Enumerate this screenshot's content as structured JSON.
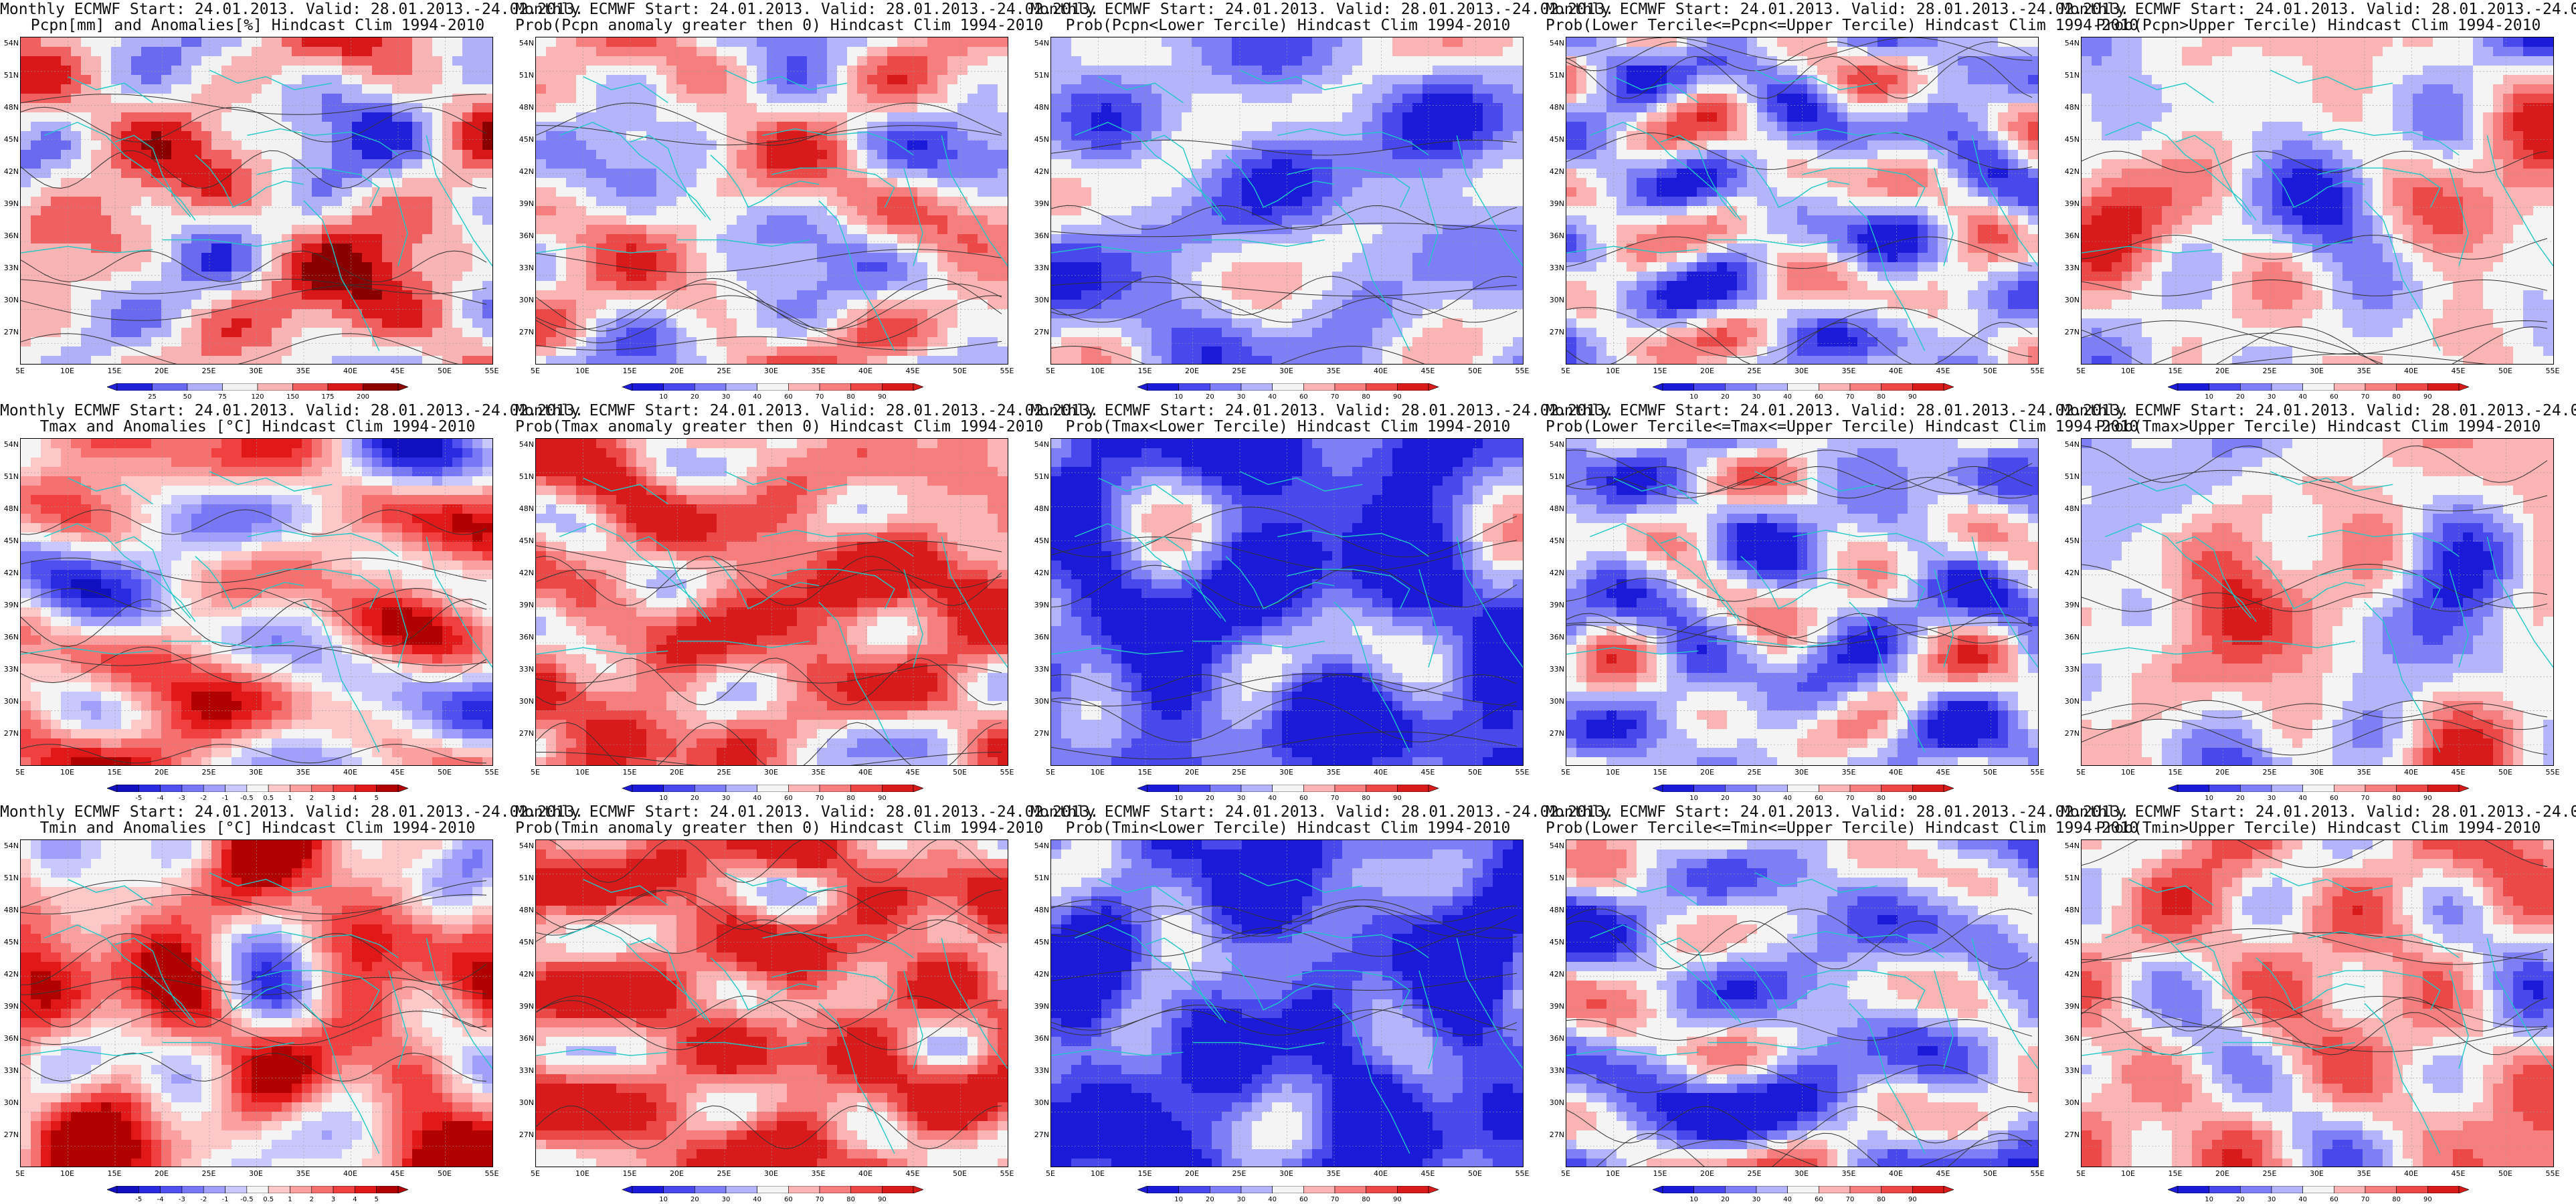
{
  "header": "Monthly ECMWF Start: 24.01.2013. Valid: 28.01.2013.-24.02.2013.",
  "lat_labels": [
    "54N",
    "51N",
    "48N",
    "45N",
    "42N",
    "39N",
    "36N",
    "33N",
    "30N",
    "27N"
  ],
  "lon_labels": [
    "5E",
    "10E",
    "15E",
    "20E",
    "25E",
    "30E",
    "35E",
    "40E",
    "45E",
    "50E",
    "55E"
  ],
  "colorbars": {
    "precip_anom": {
      "labels": [
        "25",
        "50",
        "75",
        "120",
        "150",
        "175",
        "200"
      ],
      "colors": [
        "#2020d8",
        "#6a6af0",
        "#b0b0f8",
        "#f2f2f2",
        "#f8b4b4",
        "#f06060",
        "#d81818",
        "#8a0000"
      ]
    },
    "temp_anom": {
      "labels": [
        "-5",
        "-4",
        "-3",
        "-2",
        "-1",
        "-0.5",
        "0.5",
        "1",
        "2",
        "3",
        "4",
        "5"
      ],
      "colors": [
        "#1010c0",
        "#2a2ae0",
        "#5050f0",
        "#7878f6",
        "#a0a0fa",
        "#c8c8fc",
        "#f4f4f4",
        "#fcc8c8",
        "#faa0a0",
        "#f67070",
        "#f04040",
        "#e01818",
        "#b00000"
      ]
    },
    "prob": {
      "labels": [
        "10",
        "20",
        "30",
        "40",
        "60",
        "70",
        "80",
        "90"
      ],
      "colors": [
        "#1a1ad8",
        "#4848ec",
        "#7e7ef6",
        "#b4b4fa",
        "#f4f4f4",
        "#fab4b4",
        "#f67e7e",
        "#ec4848",
        "#d81a1a"
      ]
    }
  },
  "panels": [
    {
      "title": "Pcpn[mm] and Anomalies[%] Hindcast Clim 1994-2010",
      "bar": "precip_anom",
      "scheme": "precip",
      "bias": 0.02,
      "seed": 11
    },
    {
      "title": "Prob(Pcpn anomaly greater then 0) Hindcast Clim 1994-2010",
      "bar": "prob",
      "scheme": "probp",
      "bias": 0.05,
      "seed": 23
    },
    {
      "title": "Prob(Pcpn<Lower Tercile) Hindcast Clim 1994-2010",
      "bar": "prob",
      "scheme": "lowp",
      "bias": -0.3,
      "seed": 37
    },
    {
      "title": "Prob(Lower Tercile<=Pcpn<=Upper Tercile) Hindcast Clim 1994-2010",
      "bar": "prob",
      "scheme": "midp",
      "bias": -0.15,
      "seed": 41
    },
    {
      "title": "Prob(Pcpn>Upper Tercile) Hindcast Clim 1994-2010",
      "bar": "prob",
      "scheme": "upp",
      "bias": 0.0,
      "seed": 53
    },
    {
      "title": "Tmax and Anomalies [°C] Hindcast Clim 1994-2010",
      "bar": "temp_anom",
      "scheme": "tmax",
      "bias": 0.15,
      "seed": 61
    },
    {
      "title": "Prob(Tmax anomaly greater then 0) Hindcast Clim 1994-2010",
      "bar": "prob",
      "scheme": "probt",
      "bias": 0.45,
      "seed": 73
    },
    {
      "title": "Prob(Tmax<Lower Tercile) Hindcast Clim 1994-2010",
      "bar": "prob",
      "scheme": "lowt",
      "bias": -0.65,
      "seed": 79
    },
    {
      "title": "Prob(Lower Tercile<=Tmax<=Upper Tercile) Hindcast Clim 1994-2010",
      "bar": "prob",
      "scheme": "midt",
      "bias": -0.2,
      "seed": 83
    },
    {
      "title": "Prob(Tmax>Upper Tercile) Hindcast Clim 1994-2010",
      "bar": "prob",
      "scheme": "upt",
      "bias": 0.05,
      "seed": 97
    },
    {
      "title": "Tmin and Anomalies [°C] Hindcast Clim 1994-2010",
      "bar": "temp_anom",
      "scheme": "tmin",
      "bias": 0.35,
      "seed": 101
    },
    {
      "title": "Prob(Tmin anomaly greater then 0) Hindcast Clim 1994-2010",
      "bar": "prob",
      "scheme": "probn",
      "bias": 0.55,
      "seed": 107
    },
    {
      "title": "Prob(Tmin<Lower Tercile) Hindcast Clim 1994-2010",
      "bar": "prob",
      "scheme": "lown",
      "bias": -0.7,
      "seed": 113
    },
    {
      "title": "Prob(Lower Tercile<=Tmin<=Upper Tercile) Hindcast Clim 1994-2010",
      "bar": "prob",
      "scheme": "midn",
      "bias": -0.25,
      "seed": 127
    },
    {
      "title": "Prob(Tmin>Upper Tercile) Hindcast Clim 1994-2010",
      "bar": "prob",
      "scheme": "upn",
      "bias": 0.2,
      "seed": 131
    }
  ],
  "colors": {
    "coast": "#20c8c8",
    "contour": "#333333",
    "grid": "#999999"
  }
}
